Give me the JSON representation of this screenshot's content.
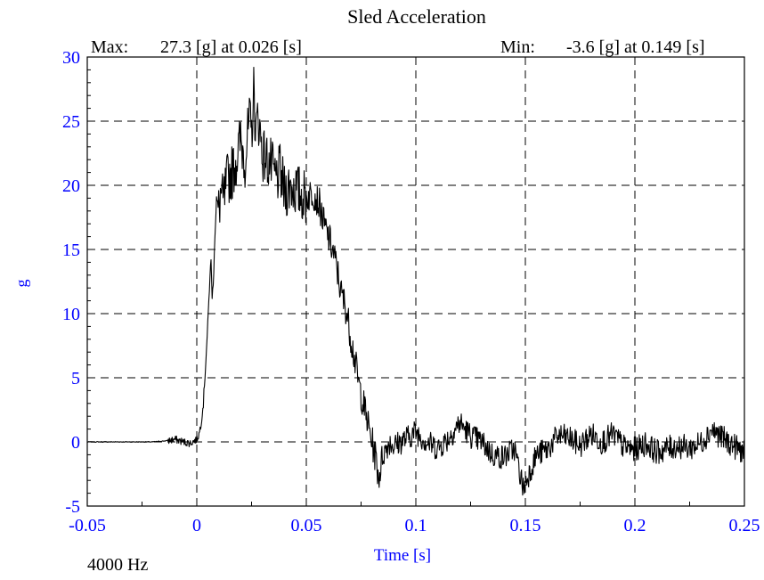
{
  "chart_data": {
    "type": "line",
    "title": "Sled Acceleration",
    "xlabel": "Time [s]",
    "ylabel": "g",
    "footnote": "4000 Hz",
    "xlim": [
      -0.05,
      0.25
    ],
    "ylim": [
      -5,
      30
    ],
    "x_ticks": [
      -0.05,
      0,
      0.05,
      0.1,
      0.15,
      0.2,
      0.25
    ],
    "x_tick_labels": [
      "-0.05",
      "0",
      "0.05",
      "0.1",
      "0.15",
      "0.2",
      "0.25"
    ],
    "y_ticks": [
      -5,
      0,
      5,
      10,
      15,
      20,
      25,
      30
    ],
    "y_tick_labels": [
      "-5",
      "0",
      "5",
      "10",
      "15",
      "20",
      "25",
      "30"
    ],
    "grid": true,
    "annotations": {
      "max": {
        "label": "Max:",
        "text": "27.3 [g] at 0.026 [s]",
        "value": 27.3,
        "time": 0.026
      },
      "min": {
        "label": "Min:",
        "text": "-3.6 [g] at 0.149 [s]",
        "value": -3.6,
        "time": 0.149
      }
    },
    "series": [
      {
        "color": "#000000",
        "x": [
          -0.05,
          -0.04,
          -0.03,
          -0.02,
          -0.013,
          -0.01,
          -0.006,
          -0.003,
          0,
          0.001,
          0.002,
          0.003,
          0.004,
          0.005,
          0.006,
          0.0065,
          0.007,
          0.0075,
          0.008,
          0.009,
          0.01,
          0.011,
          0.012,
          0.014,
          0.016,
          0.018,
          0.02,
          0.022,
          0.024,
          0.025,
          0.026,
          0.027,
          0.028,
          0.03,
          0.032,
          0.034,
          0.036,
          0.038,
          0.04,
          0.043,
          0.046,
          0.05,
          0.053,
          0.056,
          0.058,
          0.06,
          0.062,
          0.064,
          0.066,
          0.068,
          0.07,
          0.072,
          0.074,
          0.076,
          0.078,
          0.08,
          0.082,
          0.083,
          0.085,
          0.088,
          0.09,
          0.095,
          0.1,
          0.105,
          0.11,
          0.115,
          0.12,
          0.125,
          0.13,
          0.135,
          0.14,
          0.145,
          0.149,
          0.155,
          0.16,
          0.165,
          0.17,
          0.175,
          0.18,
          0.185,
          0.19,
          0.195,
          0.2,
          0.205,
          0.21,
          0.215,
          0.22,
          0.225,
          0.23,
          0.235,
          0.24,
          0.245,
          0.25
        ],
        "y": [
          0,
          0,
          0,
          0,
          0.1,
          0.2,
          0,
          -0.1,
          0.2,
          0.6,
          1.5,
          3,
          6,
          9,
          13,
          14,
          11.5,
          12,
          15,
          19,
          18,
          19.5,
          18.5,
          20.5,
          21,
          22,
          23.5,
          22,
          25,
          24,
          27.3,
          24,
          25.5,
          22.5,
          22,
          21.5,
          20.5,
          21,
          19.5,
          20,
          19.5,
          19,
          19.5,
          18.5,
          17,
          16,
          15,
          13.5,
          11.5,
          10.5,
          8.5,
          6.5,
          4.5,
          3,
          1.5,
          0,
          -1.5,
          -2.8,
          -1,
          0,
          -0.3,
          0.2,
          0.8,
          0,
          -0.5,
          0.3,
          1.5,
          0.5,
          0,
          -1,
          -1.2,
          -0.5,
          -3.6,
          -1,
          -0.6,
          0.5,
          0.3,
          -0.3,
          0.6,
          0,
          0.6,
          -0.4,
          -0.6,
          -0.1,
          -0.8,
          -0.5,
          -0.3,
          -0.5,
          -0.1,
          1.0,
          0.3,
          -0.3,
          -0.8
        ]
      }
    ]
  }
}
